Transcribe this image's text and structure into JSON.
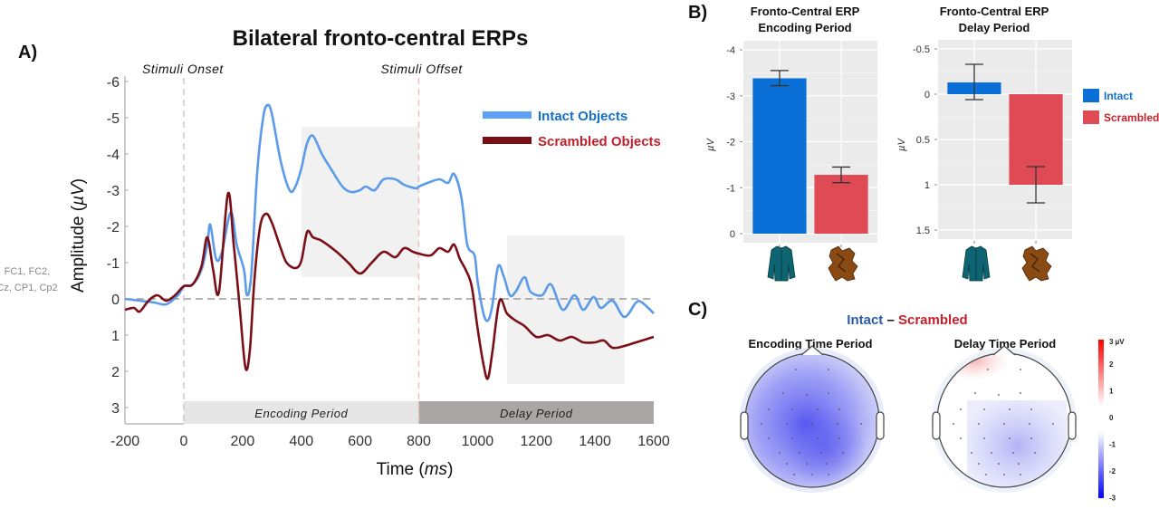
{
  "panels": {
    "a_label": "A)",
    "b_label": "B)",
    "c_label": "C)"
  },
  "chart_data": [
    {
      "id": "erp",
      "type": "line",
      "title": "Bilateral fronto-central ERPs",
      "xlabel": "Time (ms)",
      "xlabel_parts": [
        "Time (",
        "ms",
        ")"
      ],
      "ylabel": "Amplitude (µV)",
      "ylabel_parts": [
        "Amplitude (",
        "µV",
        ")"
      ],
      "electrodes_line1": "FC1, FC2,",
      "electrodes_line2": "Cz, CP1, Cp2",
      "xlim": [
        -200,
        1600
      ],
      "ylim": [
        3.5,
        -6.3
      ],
      "y_inverted": true,
      "xticks": [
        -200,
        0,
        200,
        400,
        600,
        800,
        1000,
        1200,
        1400,
        1600
      ],
      "yticks": [
        -6,
        -5,
        -4,
        -3,
        -2,
        -1,
        0,
        1,
        2,
        3
      ],
      "annotations": [
        {
          "label": "Stimuli Onset",
          "x": 0
        },
        {
          "label": "Stimuli Offset",
          "x": 800
        }
      ],
      "periods": [
        {
          "label": "Encoding Period",
          "from": 0,
          "to": 800,
          "color": "#e6e6e6"
        },
        {
          "label": "Delay Period",
          "from": 800,
          "to": 1600,
          "color": "#aaa6a6"
        }
      ],
      "highlight_windows": [
        {
          "from": 400,
          "to": 800,
          "ymin": -4.75,
          "ymax": -0.6
        },
        {
          "from": 1100,
          "to": 1500,
          "ymin": -1.75,
          "ymax": 2.35
        }
      ],
      "legend_position": "top-right",
      "series": [
        {
          "name": "Intact Objects",
          "color": "#5b9bea",
          "label_color": "#1470c8",
          "x": [
            -200,
            -150,
            -100,
            -60,
            -20,
            0,
            30,
            60,
            80,
            90,
            110,
            130,
            160,
            180,
            205,
            215,
            230,
            250,
            270,
            285,
            300,
            330,
            360,
            380,
            400,
            420,
            440,
            470,
            500,
            540,
            570,
            600,
            620,
            650,
            680,
            720,
            750,
            790,
            800,
            830,
            870,
            900,
            920,
            945,
            965,
            990,
            1000,
            1020,
            1035,
            1050,
            1070,
            1090,
            1110,
            1130,
            1160,
            1180,
            1220,
            1250,
            1290,
            1330,
            1360,
            1395,
            1420,
            1460,
            1500,
            1540,
            1560,
            1600
          ],
          "y": [
            0,
            0.05,
            0.1,
            0.15,
            -0.1,
            -0.35,
            -0.4,
            -0.8,
            -1.5,
            -2.05,
            -1.1,
            -1.3,
            -2.4,
            -1.5,
            -0.8,
            -0.1,
            -0.7,
            -3.5,
            -5.0,
            -5.35,
            -5.1,
            -3.8,
            -3.0,
            -3.1,
            -3.6,
            -4.3,
            -4.5,
            -4.0,
            -3.6,
            -3.1,
            -2.95,
            -3.0,
            -3.1,
            -3.0,
            -3.3,
            -3.3,
            -3.15,
            -3.05,
            -3.1,
            -3.2,
            -3.3,
            -3.2,
            -3.45,
            -2.8,
            -1.5,
            -1.2,
            -0.5,
            0.4,
            0.6,
            0.2,
            -0.9,
            -0.6,
            -0.1,
            -0.2,
            -0.6,
            -0.2,
            -0.1,
            -0.4,
            0.3,
            -0.1,
            0.3,
            -0.05,
            0.25,
            0.05,
            0.5,
            0.1,
            0.1,
            0.4
          ]
        },
        {
          "name": "Scrambled Objects",
          "color": "#7b0f17",
          "label_color": "#c41f2a",
          "x": [
            -200,
            -170,
            -150,
            -120,
            -90,
            -60,
            -30,
            0,
            30,
            60,
            80,
            100,
            120,
            150,
            170,
            190,
            210,
            225,
            240,
            260,
            280,
            300,
            330,
            350,
            380,
            400,
            420,
            440,
            470,
            520,
            560,
            600,
            640,
            680,
            720,
            750,
            780,
            800,
            840,
            870,
            900,
            920,
            940,
            960,
            980,
            1000,
            1020,
            1035,
            1050,
            1075,
            1100,
            1130,
            1160,
            1200,
            1240,
            1280,
            1320,
            1360,
            1400,
            1430,
            1460,
            1500,
            1540,
            1580,
            1600
          ],
          "y": [
            0.3,
            0.25,
            0.35,
            0.05,
            -0.1,
            0.05,
            -0.1,
            -0.35,
            -0.4,
            -0.9,
            -1.7,
            -0.8,
            -0.2,
            -2.9,
            -1.5,
            0.2,
            1.9,
            1.4,
            -0.5,
            -2.0,
            -2.35,
            -2.1,
            -1.4,
            -1.0,
            -0.85,
            -1.05,
            -1.85,
            -1.7,
            -1.6,
            -1.3,
            -1.0,
            -0.7,
            -1.0,
            -1.3,
            -1.15,
            -1.4,
            -1.3,
            -1.25,
            -1.2,
            -1.4,
            -1.3,
            -1.5,
            -1.1,
            -0.8,
            -0.35,
            0.8,
            1.8,
            2.2,
            1.5,
            0.05,
            0.4,
            0.6,
            0.75,
            1.05,
            1.0,
            1.15,
            1.05,
            1.2,
            1.2,
            1.15,
            1.35,
            1.3,
            1.2,
            1.1,
            1.05
          ]
        }
      ]
    },
    {
      "id": "bar-encoding",
      "type": "bar",
      "title_line1": "Fronto-Central ERP",
      "title_line2": "Encoding Period",
      "ylabel": "µV",
      "ylim": [
        0,
        -4.2
      ],
      "y_inverted": true,
      "yticks": [
        -4,
        -3,
        -2,
        -1,
        0
      ],
      "categories": [
        "Intact",
        "Scrambled"
      ],
      "values": [
        -3.38,
        -1.28
      ],
      "error_low": [
        -3.22,
        -1.11
      ],
      "error_high": [
        -3.55,
        -1.45
      ],
      "colors": [
        "#0a6fd6",
        "#e04a55"
      ]
    },
    {
      "id": "bar-delay",
      "type": "bar",
      "title_line1": "Fronto-Central ERP",
      "title_line2": "Delay Period",
      "ylabel": "µV",
      "ylim": [
        1.6,
        -0.5
      ],
      "y_inverted": true,
      "yticks": [
        -0.5,
        0,
        0.5,
        1,
        1.5
      ],
      "ytick_labels": [
        "-0.5",
        "0",
        "0.5",
        "1",
        "1.5"
      ],
      "categories": [
        "Intact",
        "Scrambled"
      ],
      "values": [
        -0.13,
        1.0
      ],
      "error_low": [
        0.06,
        0.8
      ],
      "error_high": [
        -0.33,
        1.2
      ],
      "colors": [
        "#0a6fd6",
        "#e04a55"
      ]
    }
  ],
  "bar_legend": {
    "items": [
      {
        "label": "Intact",
        "color": "#0a6fd6",
        "text_color": "#1470c8"
      },
      {
        "label": "Scrambled",
        "color": "#e04a55",
        "text_color": "#c41f2a"
      }
    ]
  },
  "topo": {
    "title_left": "Intact",
    "title_dash": " – ",
    "title_right": "Scrambled",
    "title_left_color": "#2b5aa8",
    "title_right_color": "#c41f2a",
    "maps": [
      {
        "label": "Encoding Time Period"
      },
      {
        "label": "Delay Time Period"
      }
    ],
    "colorbar": {
      "unit": "µV",
      "top_label": "3 µV",
      "ticks": [
        "2",
        "1",
        "0",
        "-1",
        "-2",
        "-3"
      ],
      "range": [
        -3,
        3
      ]
    }
  }
}
